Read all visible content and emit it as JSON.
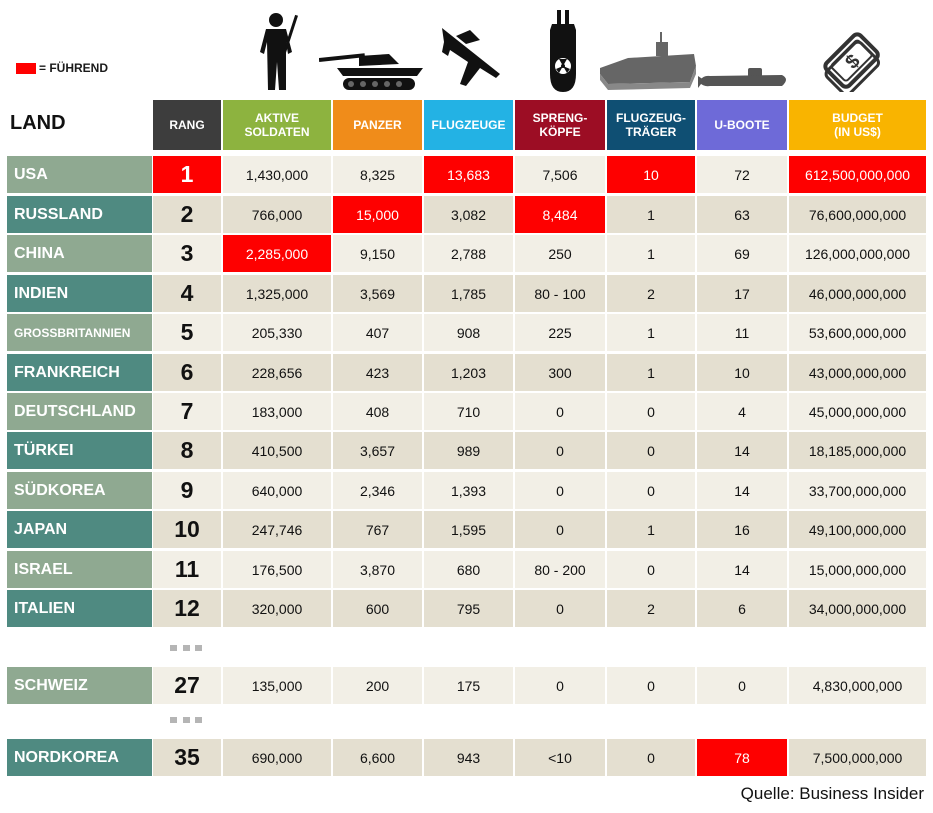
{
  "legend": {
    "label": "= FÜHREND",
    "color": "#ff0000"
  },
  "header": {
    "land": "LAND",
    "columns": [
      {
        "key": "rank",
        "label": "RANG",
        "color": "#3d3d3d",
        "icon": "tie-icon"
      },
      {
        "key": "soldiers",
        "label": "AKTIVE\nSOLDATEN",
        "color": "#8db33f",
        "icon": "soldier-icon"
      },
      {
        "key": "tanks",
        "label": "PANZER",
        "color": "#f08c1a",
        "icon": "tank-icon"
      },
      {
        "key": "aircraft",
        "label": "FLUGZEUGE",
        "color": "#23b2e4",
        "icon": "fighter-jet-icon"
      },
      {
        "key": "warheads",
        "label": "SPRENG-\nKÖPFE",
        "color": "#9c0d24",
        "icon": "nuclear-bomb-icon"
      },
      {
        "key": "carriers",
        "label": "FLUGZEUG-\nTRÄGER",
        "color": "#0f4f73",
        "icon": "aircraft-carrier-icon"
      },
      {
        "key": "subs",
        "label": "U-BOOTE",
        "color": "#6e6ad8",
        "icon": "submarine-icon"
      },
      {
        "key": "budget",
        "label": "BUDGET\n(IN US$)",
        "color": "#f9b400",
        "icon": "dollar-icon"
      }
    ]
  },
  "colors": {
    "country_light": "#8fa991",
    "country_dark": "#4f8a81",
    "row_light": "#f2efe6",
    "row_dark": "#e4dfd0",
    "lead": "#fe0000"
  },
  "chart_data": {
    "type": "table",
    "title": "",
    "columns": [
      "LAND",
      "RANG",
      "AKTIVE SOLDATEN",
      "PANZER",
      "FLUGZEUGE",
      "SPRENG-KÖPFE",
      "FLUGZEUG-TRÄGER",
      "U-BOOTE",
      "BUDGET (IN US$)"
    ],
    "rows": [
      {
        "country": "USA",
        "rank": "1",
        "soldiers": "1,430,000",
        "tanks": "8,325",
        "aircraft": "13,683",
        "warheads": "7,506",
        "carriers": "10",
        "subs": "72",
        "budget": "612,500,000,000",
        "lead": [
          "rank",
          "aircraft",
          "carriers",
          "budget"
        ]
      },
      {
        "country": "RUSSLAND",
        "rank": "2",
        "soldiers": "766,000",
        "tanks": "15,000",
        "aircraft": "3,082",
        "warheads": "8,484",
        "carriers": "1",
        "subs": "63",
        "budget": "76,600,000,000",
        "lead": [
          "tanks",
          "warheads"
        ]
      },
      {
        "country": "CHINA",
        "rank": "3",
        "soldiers": "2,285,000",
        "tanks": "9,150",
        "aircraft": "2,788",
        "warheads": "250",
        "carriers": "1",
        "subs": "69",
        "budget": "126,000,000,000",
        "lead": [
          "soldiers"
        ]
      },
      {
        "country": "INDIEN",
        "rank": "4",
        "soldiers": "1,325,000",
        "tanks": "3,569",
        "aircraft": "1,785",
        "warheads": "80 - 100",
        "carriers": "2",
        "subs": "17",
        "budget": "46,000,000,000",
        "lead": []
      },
      {
        "country": "GROSSBRITANNIEN",
        "rank": "5",
        "soldiers": "205,330",
        "tanks": "407",
        "aircraft": "908",
        "warheads": "225",
        "carriers": "1",
        "subs": "11",
        "budget": "53,600,000,000",
        "lead": []
      },
      {
        "country": "FRANKREICH",
        "rank": "6",
        "soldiers": "228,656",
        "tanks": "423",
        "aircraft": "1,203",
        "warheads": "300",
        "carriers": "1",
        "subs": "10",
        "budget": "43,000,000,000",
        "lead": []
      },
      {
        "country": "DEUTSCHLAND",
        "rank": "7",
        "soldiers": "183,000",
        "tanks": "408",
        "aircraft": "710",
        "warheads": "0",
        "carriers": "0",
        "subs": "4",
        "budget": "45,000,000,000",
        "lead": []
      },
      {
        "country": "TÜRKEI",
        "rank": "8",
        "soldiers": "410,500",
        "tanks": "3,657",
        "aircraft": "989",
        "warheads": "0",
        "carriers": "0",
        "subs": "14",
        "budget": "18,185,000,000",
        "lead": []
      },
      {
        "country": "SÜDKOREA",
        "rank": "9",
        "soldiers": "640,000",
        "tanks": "2,346",
        "aircraft": "1,393",
        "warheads": "0",
        "carriers": "0",
        "subs": "14",
        "budget": "33,700,000,000",
        "lead": []
      },
      {
        "country": "JAPAN",
        "rank": "10",
        "soldiers": "247,746",
        "tanks": "767",
        "aircraft": "1,595",
        "warheads": "0",
        "carriers": "1",
        "subs": "16",
        "budget": "49,100,000,000",
        "lead": []
      },
      {
        "country": "ISRAEL",
        "rank": "11",
        "soldiers": "176,500",
        "tanks": "3,870",
        "aircraft": "680",
        "warheads": "80 - 200",
        "carriers": "0",
        "subs": "14",
        "budget": "15,000,000,000",
        "lead": []
      },
      {
        "country": "ITALIEN",
        "rank": "12",
        "soldiers": "320,000",
        "tanks": "600",
        "aircraft": "795",
        "warheads": "0",
        "carriers": "2",
        "subs": "6",
        "budget": "34,000,000,000",
        "lead": []
      },
      {
        "country": "SCHWEIZ",
        "rank": "27",
        "soldiers": "135,000",
        "tanks": "200",
        "aircraft": "175",
        "warheads": "0",
        "carriers": "0",
        "subs": "0",
        "budget": "4,830,000,000",
        "lead": []
      },
      {
        "country": "NORDKOREA",
        "rank": "35",
        "soldiers": "690,000",
        "tanks": "6,600",
        "aircraft": "943",
        "warheads": "<10",
        "carriers": "0",
        "subs": "78",
        "budget": "7,500,000,000",
        "lead": [
          "subs"
        ]
      }
    ]
  },
  "source": "Quelle: Business Insider"
}
